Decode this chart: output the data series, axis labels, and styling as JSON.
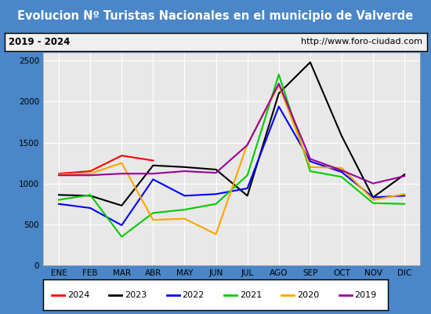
{
  "title": "Evolucion Nº Turistas Nacionales en el municipio de Valverde",
  "subtitle_left": "2019 - 2024",
  "subtitle_right": "http://www.foro-ciudad.com",
  "months": [
    "ENE",
    "FEB",
    "MAR",
    "ABR",
    "MAY",
    "JUN",
    "JUL",
    "AGO",
    "SEP",
    "OCT",
    "NOV",
    "DIC"
  ],
  "series": {
    "2024": [
      1120,
      1150,
      1340,
      1280,
      null,
      null,
      null,
      null,
      null,
      null,
      null,
      null
    ],
    "2023": [
      860,
      850,
      730,
      1220,
      1200,
      1170,
      850,
      2100,
      2480,
      1580,
      830,
      1110
    ],
    "2022": [
      750,
      700,
      490,
      1050,
      850,
      870,
      940,
      1940,
      1270,
      1140,
      830,
      850
    ],
    "2021": [
      800,
      860,
      350,
      640,
      680,
      750,
      1100,
      2330,
      1150,
      1080,
      760,
      750
    ],
    "2020": [
      1110,
      1120,
      1250,
      555,
      570,
      380,
      1480,
      2200,
      1200,
      1190,
      800,
      870
    ],
    "2019": [
      1100,
      1100,
      1120,
      1120,
      1150,
      1130,
      1470,
      2220,
      1300,
      1160,
      1000,
      1090
    ]
  },
  "colors": {
    "2024": "#ff0000",
    "2023": "#000000",
    "2022": "#0000ff",
    "2021": "#00cc00",
    "2020": "#ffa500",
    "2019": "#990099"
  },
  "ylim": [
    0,
    2600
  ],
  "yticks": [
    0,
    500,
    1000,
    1500,
    2000,
    2500
  ],
  "title_bg_color": "#4a86c8",
  "title_text_color": "#ffffff",
  "subtitle_bg_color": "#e0e0e0",
  "plot_bg_color": "#e8e8e8",
  "grid_color": "#ffffff",
  "legend_border_color": "#000000",
  "fig_border_color": "#4a86c8"
}
